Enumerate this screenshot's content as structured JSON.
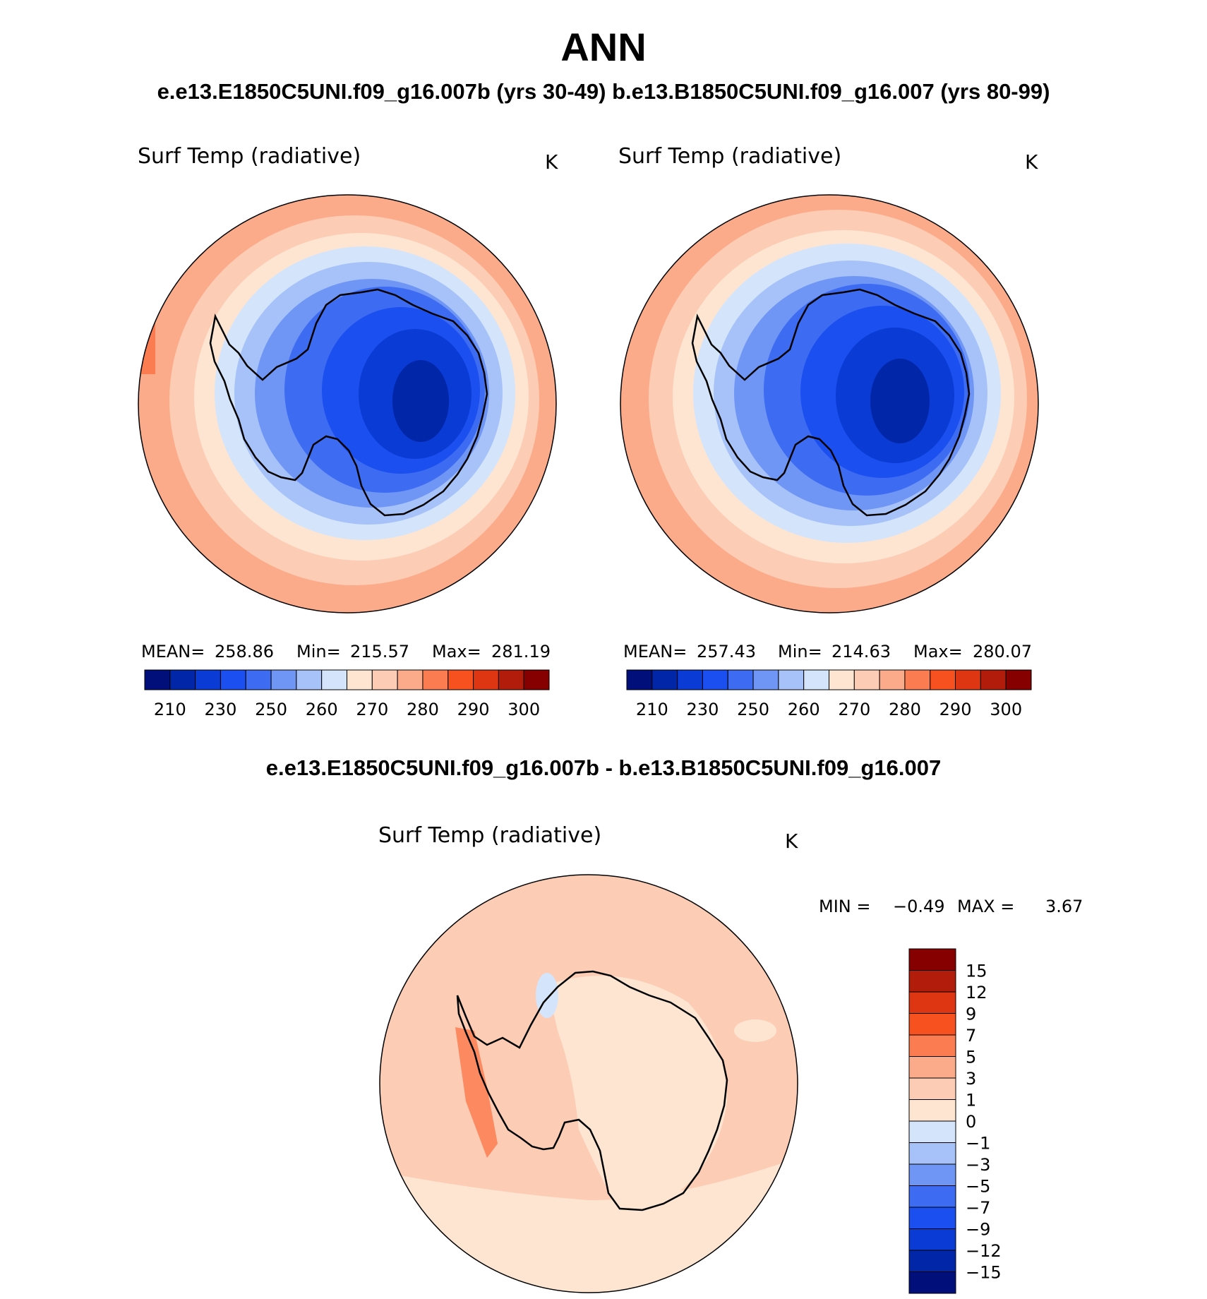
{
  "header": {
    "title": "ANN",
    "subtitle": "e.e13.E1850C5UNI.f09_g16.007b (yrs 30-49)  b.e13.B1850C5UNI.f09_g16.007 (yrs 80-99)",
    "diff_title": "e.e13.E1850C5UNI.f09_g16.007b - b.e13.B1850C5UNI.f09_g16.007"
  },
  "panels": [
    {
      "variable": "Surf Temp (radiative)",
      "units": "K",
      "stats": {
        "mean_label": "MEAN=",
        "mean": "258.86",
        "min_label": "Min=",
        "min": "215.57",
        "max_label": "Max=",
        "max": "281.19"
      }
    },
    {
      "variable": "Surf Temp (radiative)",
      "units": "K",
      "stats": {
        "mean_label": "MEAN=",
        "mean": "257.43",
        "min_label": "Min=",
        "min": "214.63",
        "max_label": "Max=",
        "max": "280.07"
      }
    }
  ],
  "diff_panel": {
    "variable": "Surf Temp (radiative)",
    "units": "K",
    "min_label": "MIN =",
    "min": "−0.49",
    "max_label": "MAX =",
    "max": "3.67"
  },
  "colorbar_abs": {
    "colors": [
      "#000f7a",
      "#0226a8",
      "#0a3bd4",
      "#1c4ff0",
      "#3d6cf2",
      "#6f95f5",
      "#a6c2f9",
      "#d4e5fb",
      "#fde5d2",
      "#fcccb4",
      "#fcab8a",
      "#fb7c51",
      "#f7511f",
      "#de3512",
      "#b21c0a",
      "#870000"
    ],
    "labels": [
      "210",
      "230",
      "250",
      "260",
      "270",
      "280",
      "290",
      "300"
    ]
  },
  "colorbar_diff": {
    "colors": [
      "#870000",
      "#b21c0a",
      "#de3512",
      "#f7511f",
      "#fb7c51",
      "#fcab8a",
      "#fcccb4",
      "#fde5d2",
      "#d4e5fb",
      "#a6c2f9",
      "#6f95f5",
      "#3d6cf2",
      "#1c4ff0",
      "#0a3bd4",
      "#0226a8",
      "#000f7a"
    ],
    "labels": [
      "15",
      "12",
      "9",
      "7",
      "5",
      "3",
      "1",
      "0",
      "−1",
      "−3",
      "−5",
      "−7",
      "−9",
      "−12",
      "−15"
    ]
  }
}
